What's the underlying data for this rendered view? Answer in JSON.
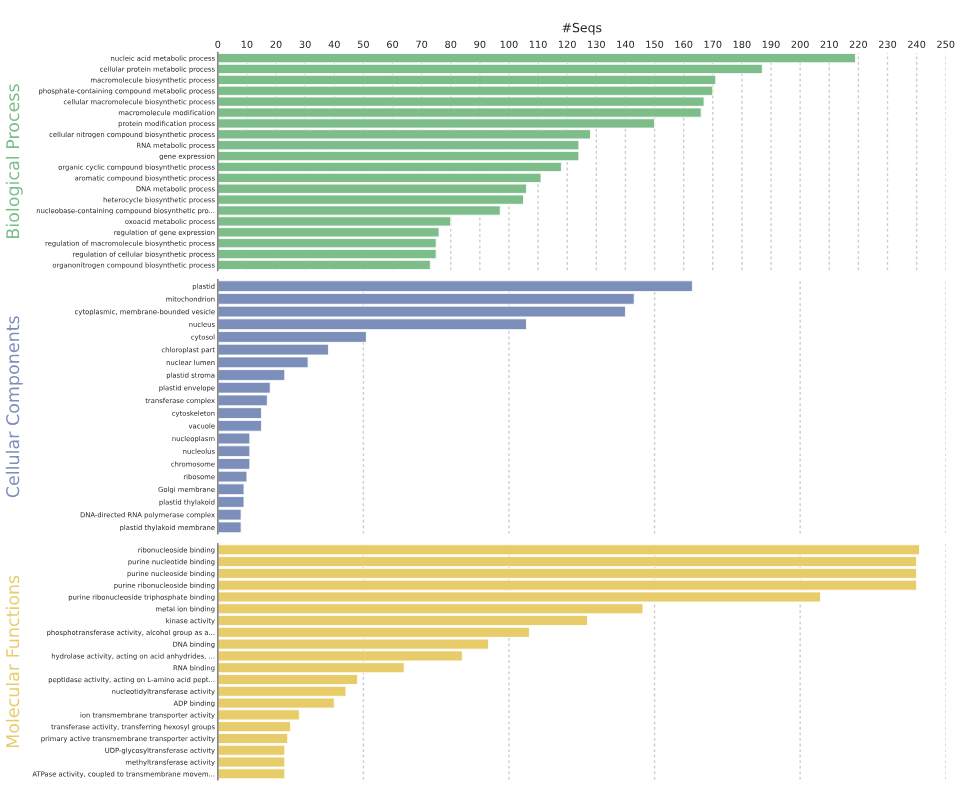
{
  "chart_data": [
    {
      "type": "bar",
      "orientation": "horizontal",
      "xlabel": "#Seqs",
      "ylabel": "Biological Process",
      "color": "#7dbd8a",
      "grid": "x",
      "xlim": [
        0,
        250
      ],
      "xticks": [
        0,
        10,
        20,
        30,
        40,
        50,
        60,
        70,
        80,
        90,
        100,
        110,
        120,
        130,
        140,
        150,
        160,
        170,
        180,
        190,
        200,
        210,
        220,
        230,
        240,
        250
      ],
      "categories": [
        "nucleic acid metabolic process",
        "cellular protein metabolic process",
        "macromolecule biosynthetic process",
        "phosphate-containing compound metabolic process",
        "cellular macromolecule biosynthetic process",
        "macromolecule modification",
        "protein modification process",
        "cellular nitrogen compound biosynthetic process",
        "RNA metabolic process",
        "gene expression",
        "organic cyclic compound biosynthetic process",
        "aromatic compound biosynthetic process",
        "DNA metabolic process",
        "heterocycle biosynthetic process",
        "nucleobase-containing compound biosynthetic pro...",
        "oxoacid metabolic process",
        "regulation of gene expression",
        "regulation of macromolecule biosynthetic process",
        "regulation of cellular biosynthetic process",
        "organonitrogen compound biosynthetic process"
      ],
      "values": [
        219,
        187,
        171,
        170,
        167,
        166,
        150,
        128,
        124,
        124,
        118,
        111,
        106,
        105,
        97,
        80,
        76,
        75,
        75,
        73
      ]
    },
    {
      "type": "bar",
      "orientation": "horizontal",
      "ylabel": "Cellular Components",
      "color": "#7b8fba",
      "grid": "x",
      "xlim": [
        0,
        250
      ],
      "tick_labels": "y",
      "categories": [
        "plastid",
        "mitochondrion",
        "cytoplasmic, membrane-bounded vesicle",
        "nucleus",
        "cytosol",
        "chloroplast part",
        "nuclear lumen",
        "plastid stroma",
        "plastid envelope",
        "transferase complex",
        "cytoskeleton",
        "vacuole",
        "nucleoplasm",
        "nucleolus",
        "chromosome",
        "ribosome",
        "Golgi membrane",
        "plastid thylakoid",
        "DNA-directed RNA polymerase complex",
        "plastid thylakoid membrane"
      ],
      "values": [
        163,
        143,
        140,
        106,
        51,
        38,
        31,
        23,
        18,
        17,
        15,
        15,
        11,
        11,
        11,
        10,
        9,
        9,
        8,
        8
      ]
    },
    {
      "type": "bar",
      "orientation": "horizontal",
      "ylabel": "Molecular Functions",
      "color": "#e8cc6a",
      "grid": "x",
      "xlim": [
        0,
        250
      ],
      "tick_labels": "y",
      "categories": [
        "ribonucleoside binding",
        "purine nucleotide binding",
        "purine nucleoside binding",
        "purine ribonucleoside binding",
        "purine ribonucleoside triphosphate binding",
        "metal ion binding",
        "kinase activity",
        "phosphotransferase activity, alcohol group as a...",
        "DNA binding",
        "hydrolase activity, acting on acid anhydrides, ...",
        "RNA binding",
        "peptidase activity, acting on L-amino acid pept...",
        "nucleotidyltransferase activity",
        "ADP binding",
        "ion transmembrane transporter activity",
        "transferase activity, transferring hexosyl groups",
        "primary active transmembrane transporter activity",
        "UDP-glycosyltransferase activity",
        "methyltransferase activity",
        "ATPase activity, coupled to transmembrane movem..."
      ],
      "values": [
        241,
        240,
        240,
        240,
        207,
        146,
        127,
        107,
        93,
        84,
        64,
        48,
        44,
        40,
        28,
        25,
        24,
        23,
        23,
        23
      ]
    }
  ]
}
